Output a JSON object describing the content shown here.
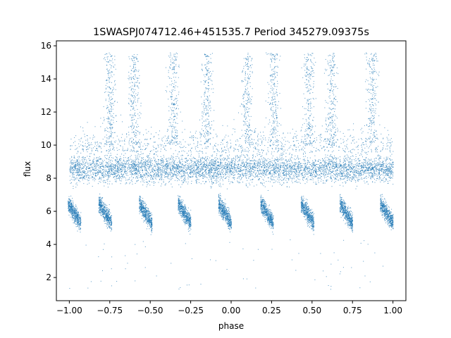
{
  "chart_data": {
    "type": "scatter",
    "title": "1SWASPJ074712.46+451535.7 Period 345279.09375s",
    "xlabel": "phase",
    "ylabel": "flux",
    "xlim": [
      -1.08,
      1.08
    ],
    "ylim": [
      0.6,
      16.3
    ],
    "xticks": [
      -1.0,
      -0.75,
      -0.5,
      -0.25,
      0.0,
      0.25,
      0.5,
      0.75,
      1.0
    ],
    "xtick_labels": [
      "−1.00",
      "−0.75",
      "−0.50",
      "−0.25",
      "0.00",
      "0.25",
      "0.50",
      "0.75",
      "1.00"
    ],
    "yticks": [
      2,
      4,
      6,
      8,
      10,
      12,
      14,
      16
    ],
    "ytick_labels": [
      "2",
      "4",
      "6",
      "8",
      "10",
      "12",
      "14",
      "16"
    ],
    "grid": false,
    "point_color": "#1f77b4",
    "phase_range": [
      -1.0,
      1.0
    ],
    "baseline_flux": 8.6,
    "dip_flux": 6.0,
    "dip_phase_centers": [
      -0.97,
      -0.78,
      -0.53,
      -0.29,
      -0.04,
      0.22,
      0.47,
      0.71,
      0.96
    ],
    "flare_phase_centers": [
      -0.75,
      -0.6,
      -0.36,
      -0.15,
      0.1,
      0.26,
      0.48,
      0.62,
      0.87
    ]
  }
}
